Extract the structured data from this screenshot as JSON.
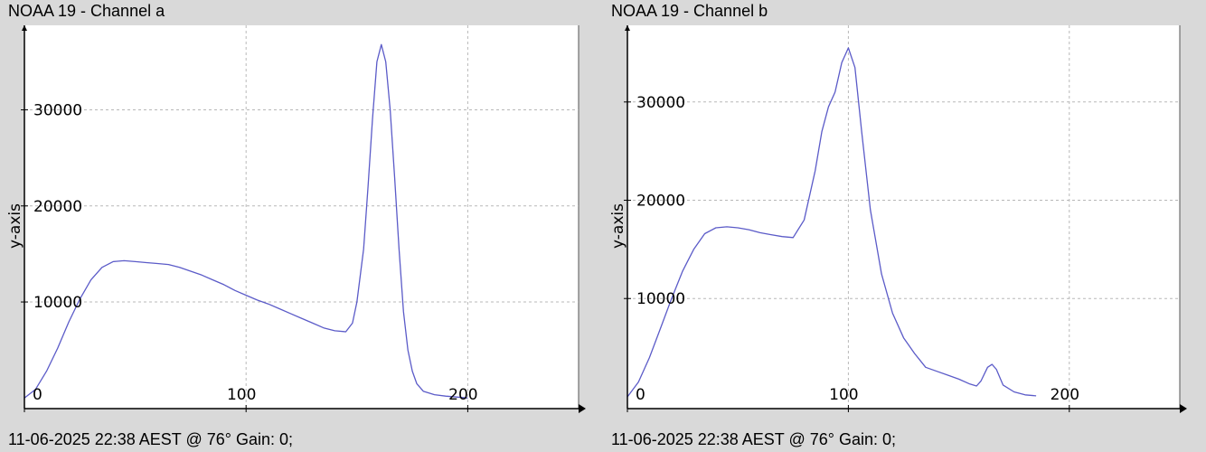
{
  "panels": [
    {
      "title": "NOAA 19 - Channel a",
      "footer": "11-06-2025 22:38 AEST @ 76° Gain: 0;"
    },
    {
      "title": "NOAA 19 - Channel b",
      "footer": "11-06-2025 22:38 AEST @ 76° Gain: 0;"
    }
  ],
  "colors": {
    "background": "#d9d9d9",
    "plot_area": "#ffffff",
    "line": "#5b5bc8",
    "grid": "#b8b8b8",
    "axis": "#000000"
  },
  "chart_data": [
    {
      "type": "line",
      "title": "NOAA 19 - Channel a",
      "xlabel": "",
      "ylabel": "y-axis",
      "xlim": [
        0,
        250
      ],
      "ylim": [
        -1100,
        38800
      ],
      "x_ticks": [
        0,
        100,
        200
      ],
      "x_tick_labels": [
        "0",
        "100",
        "200"
      ],
      "y_ticks": [
        10000,
        20000,
        30000
      ],
      "y_tick_labels": [
        "10000",
        "20000",
        "30000"
      ],
      "grid": true,
      "series": [
        {
          "x": [
            0,
            5,
            10,
            15,
            20,
            25,
            30,
            35,
            40,
            45,
            50,
            55,
            60,
            65,
            70,
            75,
            80,
            85,
            90,
            95,
            100,
            105,
            110,
            115,
            120,
            125,
            130,
            135,
            140,
            145,
            148,
            150,
            153,
            155,
            157,
            159,
            161,
            163,
            165,
            167,
            169,
            171,
            173,
            175,
            177,
            180,
            185,
            190,
            195,
            200
          ],
          "y": [
            0,
            900,
            2800,
            5200,
            7900,
            10300,
            12300,
            13600,
            14200,
            14300,
            14200,
            14100,
            14000,
            13900,
            13600,
            13200,
            12800,
            12300,
            11800,
            11200,
            10700,
            10200,
            9800,
            9300,
            8800,
            8300,
            7800,
            7300,
            7000,
            6900,
            7800,
            10000,
            15500,
            22000,
            29000,
            35000,
            36800,
            35000,
            30000,
            23000,
            15500,
            9000,
            5000,
            2800,
            1500,
            700,
            350,
            200,
            100,
            0
          ]
        }
      ]
    },
    {
      "type": "line",
      "title": "NOAA 19 - Channel b",
      "xlabel": "",
      "ylabel": "y-axis",
      "xlim": [
        0,
        250
      ],
      "ylim": [
        -1200,
        37800
      ],
      "x_ticks": [
        0,
        100,
        200
      ],
      "x_tick_labels": [
        "0",
        "100",
        "200"
      ],
      "y_ticks": [
        10000,
        20000,
        30000
      ],
      "y_tick_labels": [
        "10000",
        "20000",
        "30000"
      ],
      "grid": true,
      "series": [
        {
          "x": [
            0,
            5,
            10,
            15,
            20,
            25,
            30,
            35,
            40,
            45,
            50,
            55,
            60,
            65,
            70,
            75,
            80,
            85,
            88,
            91,
            94,
            97,
            100,
            103,
            106,
            110,
            115,
            120,
            125,
            130,
            135,
            140,
            145,
            150,
            155,
            158,
            160,
            163,
            165,
            167,
            170,
            175,
            180,
            185
          ],
          "y": [
            0,
            1500,
            4000,
            7000,
            10000,
            12800,
            15000,
            16600,
            17200,
            17300,
            17200,
            17000,
            16700,
            16500,
            16300,
            16200,
            18000,
            23000,
            27000,
            29500,
            31000,
            34000,
            35500,
            33500,
            27000,
            19000,
            12500,
            8500,
            6000,
            4400,
            3000,
            2600,
            2200,
            1800,
            1300,
            1100,
            1600,
            3000,
            3300,
            2800,
            1200,
            500,
            200,
            100
          ]
        }
      ]
    }
  ]
}
